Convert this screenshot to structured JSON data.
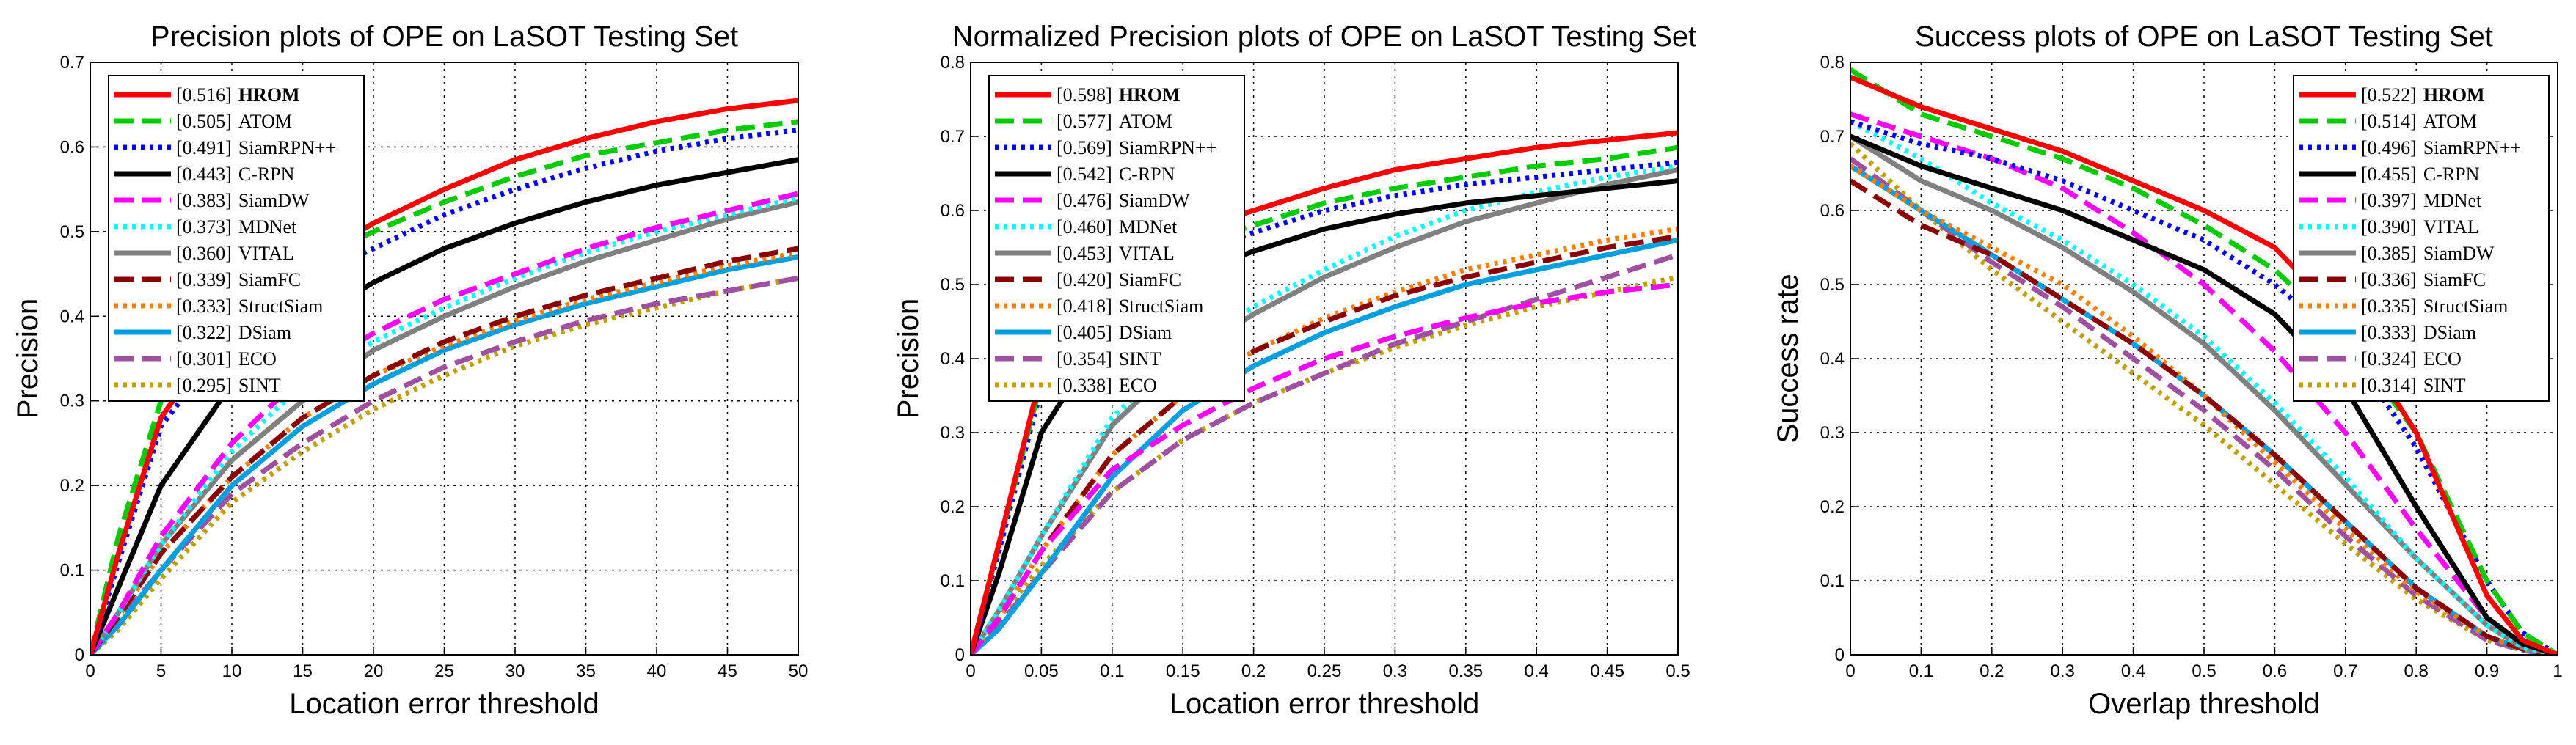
{
  "chart_data": [
    {
      "type": "line",
      "title": "Precision plots of OPE on LaSOT Testing Set",
      "xlabel": "Location error threshold",
      "ylabel": "Precision",
      "xlim": [
        0,
        50
      ],
      "ylim": [
        0,
        0.7
      ],
      "xticks": [
        "0",
        "5",
        "10",
        "15",
        "20",
        "25",
        "30",
        "35",
        "40",
        "45",
        "50"
      ],
      "yticks": [
        "0",
        "0.1",
        "0.2",
        "0.3",
        "0.4",
        "0.5",
        "0.6",
        "0.7"
      ],
      "grid": true,
      "legend_position": "top-left",
      "x": [
        0,
        2,
        5,
        10,
        15,
        20,
        25,
        30,
        35,
        40,
        45,
        50
      ],
      "series": [
        {
          "name": "HROM",
          "score": "[0.516]",
          "color": "#ff0000",
          "style": "solid",
          "bold": true,
          "values": [
            0,
            0.12,
            0.28,
            0.4,
            0.46,
            0.51,
            0.55,
            0.585,
            0.61,
            0.63,
            0.645,
            0.655
          ]
        },
        {
          "name": "ATOM",
          "score": "[0.505]",
          "color": "#00cc00",
          "style": "dash",
          "bold": false,
          "values": [
            0,
            0.14,
            0.3,
            0.41,
            0.46,
            0.5,
            0.535,
            0.565,
            0.59,
            0.605,
            0.62,
            0.63
          ]
        },
        {
          "name": "SiamRPN++",
          "score": "[0.491]",
          "color": "#0000ff",
          "style": "dot",
          "bold": false,
          "values": [
            0,
            0.11,
            0.27,
            0.38,
            0.44,
            0.48,
            0.52,
            0.55,
            0.575,
            0.595,
            0.61,
            0.62
          ]
        },
        {
          "name": "C-RPN",
          "score": "[0.443]",
          "color": "#000000",
          "style": "solid",
          "bold": false,
          "values": [
            0,
            0.08,
            0.2,
            0.32,
            0.39,
            0.44,
            0.48,
            0.51,
            0.535,
            0.555,
            0.57,
            0.585
          ]
        },
        {
          "name": "SiamDW",
          "score": "[0.383]",
          "color": "#ff00ff",
          "style": "dash",
          "bold": false,
          "values": [
            0,
            0.05,
            0.14,
            0.25,
            0.33,
            0.38,
            0.42,
            0.45,
            0.48,
            0.505,
            0.525,
            0.545
          ]
        },
        {
          "name": "MDNet",
          "score": "[0.373]",
          "color": "#00ffff",
          "style": "dot",
          "bold": false,
          "values": [
            0,
            0.05,
            0.13,
            0.24,
            0.32,
            0.37,
            0.41,
            0.445,
            0.475,
            0.5,
            0.52,
            0.54
          ]
        },
        {
          "name": "VITAL",
          "score": "[0.360]",
          "color": "#808080",
          "style": "solid",
          "bold": false,
          "values": [
            0,
            0.05,
            0.13,
            0.23,
            0.3,
            0.36,
            0.4,
            0.435,
            0.465,
            0.49,
            0.515,
            0.535
          ]
        },
        {
          "name": "SiamFC",
          "score": "[0.339]",
          "color": "#8b0000",
          "style": "dash",
          "bold": false,
          "values": [
            0,
            0.045,
            0.12,
            0.21,
            0.28,
            0.33,
            0.37,
            0.4,
            0.425,
            0.445,
            0.465,
            0.48
          ]
        },
        {
          "name": "StructSiam",
          "score": "[0.333]",
          "color": "#ff8000",
          "style": "dot",
          "bold": false,
          "values": [
            0,
            0.045,
            0.12,
            0.21,
            0.28,
            0.33,
            0.365,
            0.395,
            0.42,
            0.44,
            0.46,
            0.475
          ]
        },
        {
          "name": "DSiam",
          "score": "[0.322]",
          "color": "#00a0e0",
          "style": "solid",
          "bold": false,
          "values": [
            0,
            0.035,
            0.1,
            0.2,
            0.27,
            0.32,
            0.36,
            0.39,
            0.415,
            0.435,
            0.455,
            0.47
          ]
        },
        {
          "name": "ECO",
          "score": "[0.301]",
          "color": "#a050a0",
          "style": "dash",
          "bold": false,
          "values": [
            0,
            0.04,
            0.1,
            0.19,
            0.25,
            0.3,
            0.34,
            0.37,
            0.395,
            0.415,
            0.43,
            0.445
          ]
        },
        {
          "name": "SINT",
          "score": "[0.295]",
          "color": "#c0a000",
          "style": "dot",
          "bold": false,
          "values": [
            0,
            0.03,
            0.09,
            0.18,
            0.24,
            0.29,
            0.33,
            0.365,
            0.39,
            0.41,
            0.43,
            0.445
          ]
        }
      ]
    },
    {
      "type": "line",
      "title": "Normalized Precision plots of OPE on LaSOT Testing Set",
      "xlabel": "Location error threshold",
      "ylabel": "Precision",
      "xlim": [
        0,
        0.5
      ],
      "ylim": [
        0,
        0.8
      ],
      "xticks": [
        "0",
        "0.05",
        "0.1",
        "0.15",
        "0.2",
        "0.25",
        "0.3",
        "0.35",
        "0.4",
        "0.45",
        "0.5"
      ],
      "yticks": [
        "0",
        "0.1",
        "0.2",
        "0.3",
        "0.4",
        "0.5",
        "0.6",
        "0.7",
        "0.8"
      ],
      "grid": true,
      "legend_position": "top-left",
      "x": [
        0,
        0.02,
        0.05,
        0.1,
        0.15,
        0.2,
        0.25,
        0.3,
        0.35,
        0.4,
        0.45,
        0.5
      ],
      "series": [
        {
          "name": "HROM",
          "score": "[0.598]",
          "color": "#ff0000",
          "style": "solid",
          "bold": true,
          "values": [
            0,
            0.15,
            0.38,
            0.52,
            0.57,
            0.6,
            0.63,
            0.655,
            0.67,
            0.685,
            0.695,
            0.705
          ]
        },
        {
          "name": "ATOM",
          "score": "[0.577]",
          "color": "#00cc00",
          "style": "dash",
          "bold": false,
          "values": [
            0,
            0.15,
            0.37,
            0.5,
            0.55,
            0.58,
            0.61,
            0.63,
            0.645,
            0.66,
            0.67,
            0.685
          ]
        },
        {
          "name": "SiamRPN++",
          "score": "[0.569]",
          "color": "#0000ff",
          "style": "dot",
          "bold": false,
          "values": [
            0,
            0.14,
            0.36,
            0.49,
            0.54,
            0.57,
            0.6,
            0.62,
            0.635,
            0.645,
            0.655,
            0.665
          ]
        },
        {
          "name": "C-RPN",
          "score": "[0.542]",
          "color": "#000000",
          "style": "solid",
          "bold": false,
          "values": [
            0,
            0.11,
            0.3,
            0.45,
            0.51,
            0.545,
            0.575,
            0.595,
            0.61,
            0.62,
            0.63,
            0.64
          ]
        },
        {
          "name": "SiamDW",
          "score": "[0.476]",
          "color": "#ff00ff",
          "style": "dash",
          "bold": false,
          "values": [
            0,
            0.05,
            0.14,
            0.25,
            0.31,
            0.36,
            0.4,
            0.43,
            0.455,
            0.475,
            0.49,
            0.5
          ]
        },
        {
          "name": "MDNet",
          "score": "[0.460]",
          "color": "#00ffff",
          "style": "dot",
          "bold": false,
          "values": [
            0,
            0.06,
            0.16,
            0.32,
            0.41,
            0.47,
            0.52,
            0.565,
            0.6,
            0.625,
            0.645,
            0.66
          ]
        },
        {
          "name": "VITAL",
          "score": "[0.453]",
          "color": "#808080",
          "style": "solid",
          "bold": false,
          "values": [
            0,
            0.06,
            0.16,
            0.31,
            0.4,
            0.46,
            0.51,
            0.55,
            0.585,
            0.61,
            0.635,
            0.655
          ]
        },
        {
          "name": "SiamFC",
          "score": "[0.420]",
          "color": "#8b0000",
          "style": "dash",
          "bold": false,
          "values": [
            0,
            0.05,
            0.14,
            0.27,
            0.35,
            0.41,
            0.45,
            0.485,
            0.51,
            0.53,
            0.55,
            0.565
          ]
        },
        {
          "name": "StructSiam",
          "score": "[0.418]",
          "color": "#ff8000",
          "style": "dot",
          "bold": false,
          "values": [
            0,
            0.05,
            0.14,
            0.27,
            0.35,
            0.41,
            0.455,
            0.49,
            0.52,
            0.54,
            0.56,
            0.575
          ]
        },
        {
          "name": "DSiam",
          "score": "[0.405]",
          "color": "#00a0e0",
          "style": "solid",
          "bold": false,
          "values": [
            0,
            0.035,
            0.11,
            0.24,
            0.33,
            0.39,
            0.435,
            0.47,
            0.5,
            0.52,
            0.54,
            0.56
          ]
        },
        {
          "name": "SINT",
          "score": "[0.354]",
          "color": "#a050a0",
          "style": "dash",
          "bold": false,
          "values": [
            0,
            0.04,
            0.11,
            0.22,
            0.29,
            0.34,
            0.38,
            0.42,
            0.45,
            0.48,
            0.51,
            0.54
          ]
        },
        {
          "name": "ECO",
          "score": "[0.338]",
          "color": "#c0a000",
          "style": "dot",
          "bold": false,
          "values": [
            0,
            0.05,
            0.12,
            0.22,
            0.29,
            0.34,
            0.38,
            0.415,
            0.445,
            0.47,
            0.49,
            0.51
          ]
        }
      ]
    },
    {
      "type": "line",
      "title": "Success plots of OPE on LaSOT Testing Set",
      "xlabel": "Overlap threshold",
      "ylabel": "Success rate",
      "xlim": [
        0,
        1
      ],
      "ylim": [
        0,
        0.8
      ],
      "xticks": [
        "0",
        "0.1",
        "0.2",
        "0.3",
        "0.4",
        "0.5",
        "0.6",
        "0.7",
        "0.8",
        "0.9",
        "1"
      ],
      "yticks": [
        "0",
        "0.1",
        "0.2",
        "0.3",
        "0.4",
        "0.5",
        "0.6",
        "0.7",
        "0.8"
      ],
      "grid": true,
      "legend_position": "top-right",
      "x": [
        0,
        0.1,
        0.2,
        0.3,
        0.4,
        0.5,
        0.6,
        0.7,
        0.8,
        0.9,
        0.95,
        1.0
      ],
      "series": [
        {
          "name": "HROM",
          "score": "[0.522]",
          "color": "#ff0000",
          "style": "solid",
          "bold": true,
          "values": [
            0.78,
            0.74,
            0.71,
            0.68,
            0.64,
            0.6,
            0.55,
            0.45,
            0.3,
            0.08,
            0.02,
            0
          ]
        },
        {
          "name": "ATOM",
          "score": "[0.514]",
          "color": "#00cc00",
          "style": "dash",
          "bold": false,
          "values": [
            0.79,
            0.73,
            0.7,
            0.67,
            0.63,
            0.58,
            0.52,
            0.43,
            0.3,
            0.1,
            0.03,
            0
          ]
        },
        {
          "name": "SiamRPN++",
          "score": "[0.496]",
          "color": "#0000ff",
          "style": "dot",
          "bold": false,
          "values": [
            0.72,
            0.69,
            0.67,
            0.64,
            0.6,
            0.56,
            0.5,
            0.42,
            0.28,
            0.1,
            0.03,
            0
          ]
        },
        {
          "name": "C-RPN",
          "score": "[0.455]",
          "color": "#000000",
          "style": "solid",
          "bold": false,
          "values": [
            0.7,
            0.66,
            0.63,
            0.6,
            0.56,
            0.52,
            0.46,
            0.36,
            0.2,
            0.05,
            0.015,
            0
          ]
        },
        {
          "name": "MDNet",
          "score": "[0.397]",
          "color": "#ff00ff",
          "style": "dash",
          "bold": false,
          "values": [
            0.73,
            0.7,
            0.67,
            0.63,
            0.57,
            0.5,
            0.41,
            0.3,
            0.17,
            0.05,
            0.015,
            0
          ]
        },
        {
          "name": "VITAL",
          "score": "[0.390]",
          "color": "#00ffff",
          "style": "dot",
          "bold": false,
          "values": [
            0.72,
            0.67,
            0.61,
            0.56,
            0.5,
            0.43,
            0.34,
            0.24,
            0.13,
            0.04,
            0.01,
            0
          ]
        },
        {
          "name": "SiamDW",
          "score": "[0.385]",
          "color": "#808080",
          "style": "solid",
          "bold": false,
          "values": [
            0.7,
            0.64,
            0.6,
            0.55,
            0.49,
            0.42,
            0.33,
            0.23,
            0.13,
            0.04,
            0.01,
            0
          ]
        },
        {
          "name": "SiamFC",
          "score": "[0.336]",
          "color": "#8b0000",
          "style": "dash",
          "bold": false,
          "values": [
            0.64,
            0.58,
            0.54,
            0.48,
            0.42,
            0.35,
            0.27,
            0.18,
            0.09,
            0.025,
            0.008,
            0
          ]
        },
        {
          "name": "StructSiam",
          "score": "[0.335]",
          "color": "#ff8000",
          "style": "dot",
          "bold": false,
          "values": [
            0.66,
            0.6,
            0.55,
            0.5,
            0.43,
            0.35,
            0.26,
            0.17,
            0.085,
            0.025,
            0.008,
            0
          ]
        },
        {
          "name": "DSiam",
          "score": "[0.333]",
          "color": "#00a0e0",
          "style": "solid",
          "bold": false,
          "values": [
            0.66,
            0.6,
            0.54,
            0.48,
            0.42,
            0.35,
            0.27,
            0.18,
            0.09,
            0.025,
            0.008,
            0
          ]
        },
        {
          "name": "ECO",
          "score": "[0.324]",
          "color": "#a050a0",
          "style": "dash",
          "bold": false,
          "values": [
            0.67,
            0.6,
            0.53,
            0.47,
            0.4,
            0.33,
            0.25,
            0.16,
            0.08,
            0.02,
            0.006,
            0
          ]
        },
        {
          "name": "SINT",
          "score": "[0.314]",
          "color": "#c0a000",
          "style": "dot",
          "bold": false,
          "values": [
            0.69,
            0.6,
            0.52,
            0.45,
            0.38,
            0.31,
            0.23,
            0.15,
            0.075,
            0.02,
            0.006,
            0
          ]
        }
      ]
    }
  ]
}
